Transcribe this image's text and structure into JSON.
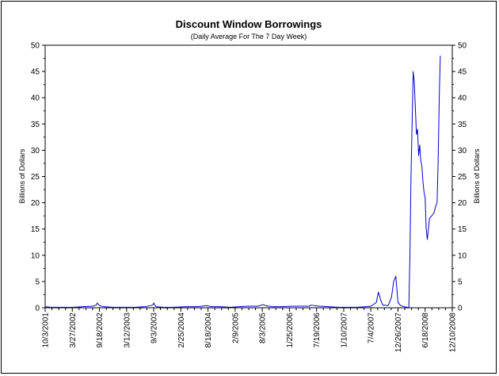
{
  "chart_data": {
    "type": "line",
    "title": "Discount Window Borrowings",
    "subtitle": "(Daily Average For The 7 Day Week)",
    "ylabel": "Billions of Dollars",
    "ylabel_right": "Billions of Dollars",
    "xlabel": "",
    "ylim": [
      0,
      50
    ],
    "yticks": [
      0,
      5,
      10,
      15,
      20,
      25,
      30,
      35,
      40,
      45,
      50
    ],
    "xlim": [
      "2001-10-03",
      "2008-12-10"
    ],
    "xticks": [
      "10/3/2001",
      "3/27/2002",
      "9/18/2002",
      "3/12/2003",
      "9/3/2003",
      "2/25/2004",
      "8/18/2004",
      "2/9/2005",
      "8/3/2005",
      "1/25/2006",
      "7/19/2006",
      "1/10/2007",
      "7/4/2007",
      "12/26/2007",
      "6/18/2008",
      "12/10/2008"
    ],
    "grid": false,
    "legend": "none",
    "series": [
      {
        "color": "#0000cc",
        "x": [
          "2001-10-03",
          "2001-11-07",
          "2001-12-19",
          "2002-02-06",
          "2002-04-03",
          "2002-06-05",
          "2002-08-07",
          "2002-08-28",
          "2002-09-04",
          "2002-09-18",
          "2002-10-16",
          "2002-12-11",
          "2003-02-05",
          "2003-05-07",
          "2003-07-09",
          "2003-08-27",
          "2003-09-03",
          "2003-09-17",
          "2003-11-05",
          "2004-01-07",
          "2004-04-07",
          "2004-06-09",
          "2004-08-11",
          "2004-09-08",
          "2004-11-03",
          "2005-01-05",
          "2005-03-09",
          "2005-05-04",
          "2005-07-06",
          "2005-07-27",
          "2005-08-10",
          "2005-08-24",
          "2005-09-14",
          "2005-10-12",
          "2005-12-07",
          "2006-02-08",
          "2006-04-05",
          "2006-05-31",
          "2006-06-14",
          "2006-08-02",
          "2006-10-04",
          "2006-12-06",
          "2007-02-07",
          "2007-04-04",
          "2007-06-06",
          "2007-07-04",
          "2007-08-08",
          "2007-08-22",
          "2007-09-05",
          "2007-09-19",
          "2007-10-03",
          "2007-10-24",
          "2007-11-14",
          "2007-11-28",
          "2007-12-12",
          "2007-12-26",
          "2008-01-09",
          "2008-01-23",
          "2008-02-06",
          "2008-02-20",
          "2008-03-05",
          "2008-03-12",
          "2008-03-19",
          "2008-03-26",
          "2008-04-02",
          "2008-04-09",
          "2008-04-16",
          "2008-04-23",
          "2008-04-30",
          "2008-05-07",
          "2008-05-14",
          "2008-05-21",
          "2008-05-28",
          "2008-06-04",
          "2008-06-11",
          "2008-06-18",
          "2008-06-25",
          "2008-07-02",
          "2008-07-16",
          "2008-07-30",
          "2008-08-13",
          "2008-08-27",
          "2008-09-03",
          "2008-09-10",
          "2008-09-17",
          "2008-09-24"
        ],
        "values": [
          0.2,
          0.1,
          0.1,
          0.1,
          0.1,
          0.2,
          0.3,
          0.5,
          0.9,
          0.4,
          0.2,
          0.1,
          0.1,
          0.1,
          0.2,
          0.5,
          0.9,
          0.2,
          0.1,
          0.1,
          0.2,
          0.2,
          0.4,
          0.2,
          0.2,
          0.1,
          0.2,
          0.3,
          0.3,
          0.5,
          0.6,
          0.4,
          0.3,
          0.2,
          0.2,
          0.3,
          0.3,
          0.3,
          0.5,
          0.3,
          0.2,
          0.1,
          0.1,
          0.1,
          0.2,
          0.3,
          1.0,
          3.0,
          1.5,
          0.5,
          0.5,
          0.4,
          2.0,
          5.0,
          6.0,
          1.0,
          0.5,
          0.3,
          0.2,
          0.1,
          0.1,
          10.0,
          25.0,
          35.0,
          45.0,
          43.0,
          38.0,
          33.0,
          34.0,
          29.0,
          31.0,
          28.0,
          27.0,
          24.0,
          22.0,
          21.0,
          15.0,
          13.0,
          17.0,
          17.5,
          18.0,
          19.5,
          20.0,
          28.0,
          40.0,
          48.0
        ]
      }
    ]
  }
}
